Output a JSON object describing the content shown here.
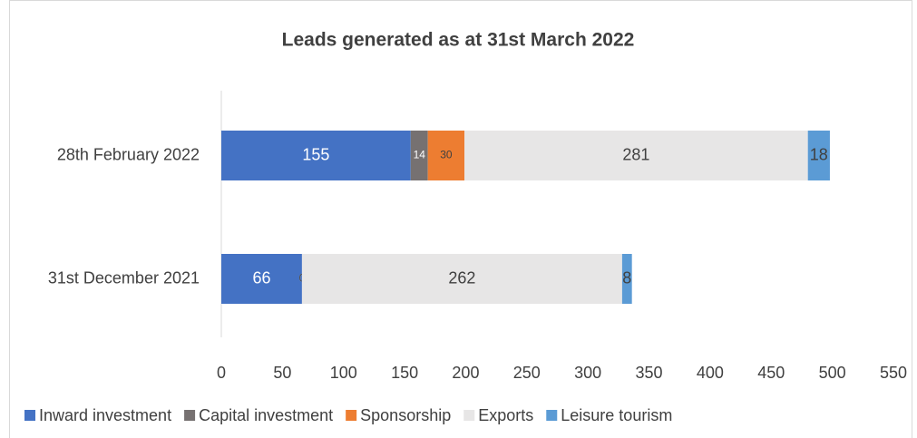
{
  "chart_data": {
    "type": "stacked-bar-horizontal",
    "title": "Leads generated as at 31st March 2022",
    "categories": [
      "28th February 2022",
      "31st December 2021"
    ],
    "series": [
      {
        "name": "Inward investment",
        "color": "#4472c4",
        "values": [
          155,
          66
        ]
      },
      {
        "name": "Capital investment",
        "color": "#767171",
        "values": [
          14,
          0
        ]
      },
      {
        "name": "Sponsorship",
        "color": "#ed7d31",
        "values": [
          30,
          0
        ]
      },
      {
        "name": "Exports",
        "color": "#e7e6e6",
        "values": [
          281,
          262
        ]
      },
      {
        "name": "Leisure tourism",
        "color": "#5b9bd5",
        "values": [
          18,
          8
        ]
      }
    ],
    "xlim": [
      0,
      550
    ],
    "xticks": [
      0,
      50,
      100,
      150,
      200,
      250,
      300,
      350,
      400,
      450,
      500,
      550
    ],
    "legend": "bottom"
  }
}
